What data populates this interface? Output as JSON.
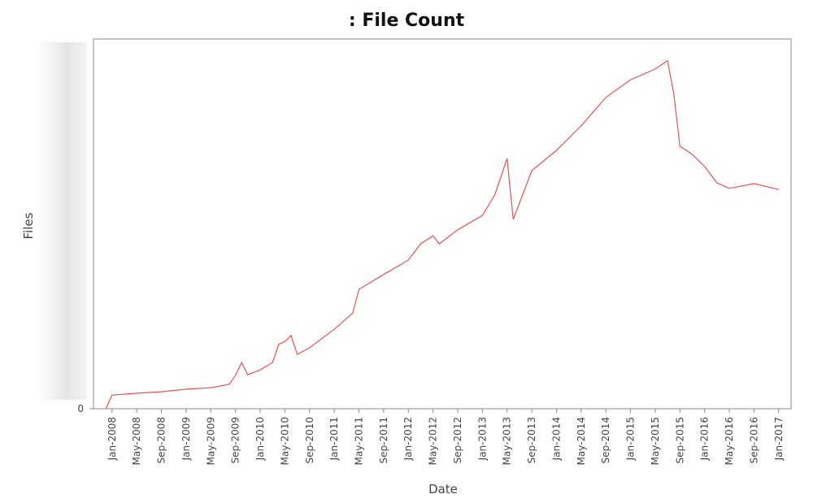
{
  "chart_data": {
    "type": "line",
    "title": ": File Count",
    "xlabel": "Date",
    "ylabel": "Files",
    "x": [
      "2007-12",
      "2008-01",
      "2008-05",
      "2008-09",
      "2009-01",
      "2009-05",
      "2009-08",
      "2009-09",
      "2009-10",
      "2009-11",
      "2010-01",
      "2010-03",
      "2010-04",
      "2010-05",
      "2010-06",
      "2010-07",
      "2010-09",
      "2011-01",
      "2011-04",
      "2011-05",
      "2011-09",
      "2012-01",
      "2012-03",
      "2012-05",
      "2012-06",
      "2012-09",
      "2013-01",
      "2013-03",
      "2013-05",
      "2013-06",
      "2013-07",
      "2013-09",
      "2014-01",
      "2014-05",
      "2014-09",
      "2015-01",
      "2015-05",
      "2015-07",
      "2015-08",
      "2015-09",
      "2015-11",
      "2016-01",
      "2016-03",
      "2016-05",
      "2016-09",
      "2017-01"
    ],
    "series": [
      {
        "name": "Files",
        "color": "#e05555",
        "values": [
          0,
          3.7,
          4.2,
          4.6,
          5.3,
          5.7,
          6.6,
          9.0,
          12.5,
          9.2,
          10.5,
          12.5,
          17.4,
          18.2,
          19.8,
          14.7,
          16.5,
          21.5,
          25.9,
          32.3,
          36.3,
          40.2,
          44.6,
          46.8,
          44.6,
          48.4,
          52.3,
          57.8,
          67.7,
          51.2,
          55.6,
          64.4,
          69.9,
          76.5,
          84.2,
          89.0,
          91.9,
          94.1,
          85.3,
          71.0,
          68.8,
          65.5,
          61.1,
          59.6,
          60.9,
          59.3
        ]
      }
    ],
    "xlim": [
      "2007-10",
      "2017-03"
    ],
    "xticks": [
      {
        "value": "2008-01",
        "label": "Jan-2008"
      },
      {
        "value": "2008-05",
        "label": "May-2008"
      },
      {
        "value": "2008-09",
        "label": "Sep-2008"
      },
      {
        "value": "2009-01",
        "label": "Jan-2009"
      },
      {
        "value": "2009-05",
        "label": "May-2009"
      },
      {
        "value": "2009-09",
        "label": "Sep-2009"
      },
      {
        "value": "2010-01",
        "label": "Jan-2010"
      },
      {
        "value": "2010-05",
        "label": "May-2010"
      },
      {
        "value": "2010-09",
        "label": "Sep-2010"
      },
      {
        "value": "2011-01",
        "label": "Jan-2011"
      },
      {
        "value": "2011-05",
        "label": "May-2011"
      },
      {
        "value": "2011-09",
        "label": "Sep-2011"
      },
      {
        "value": "2012-01",
        "label": "Jan-2012"
      },
      {
        "value": "2012-05",
        "label": "May-2012"
      },
      {
        "value": "2012-09",
        "label": "Sep-2012"
      },
      {
        "value": "2013-01",
        "label": "Jan-2013"
      },
      {
        "value": "2013-05",
        "label": "May-2013"
      },
      {
        "value": "2013-09",
        "label": "Sep-2013"
      },
      {
        "value": "2014-01",
        "label": "Jan-2014"
      },
      {
        "value": "2014-05",
        "label": "May-2014"
      },
      {
        "value": "2014-09",
        "label": "Sep-2014"
      },
      {
        "value": "2015-01",
        "label": "Jan-2015"
      },
      {
        "value": "2015-05",
        "label": "May-2015"
      },
      {
        "value": "2015-09",
        "label": "Sep-2015"
      },
      {
        "value": "2016-01",
        "label": "Jan-2016"
      },
      {
        "value": "2016-05",
        "label": "May-2016"
      },
      {
        "value": "2016-09",
        "label": "Sep-2016"
      },
      {
        "value": "2017-01",
        "label": "Jan-2017"
      }
    ],
    "ylim": [
      0,
      100
    ],
    "yticks": [
      0
    ],
    "grid": false
  }
}
